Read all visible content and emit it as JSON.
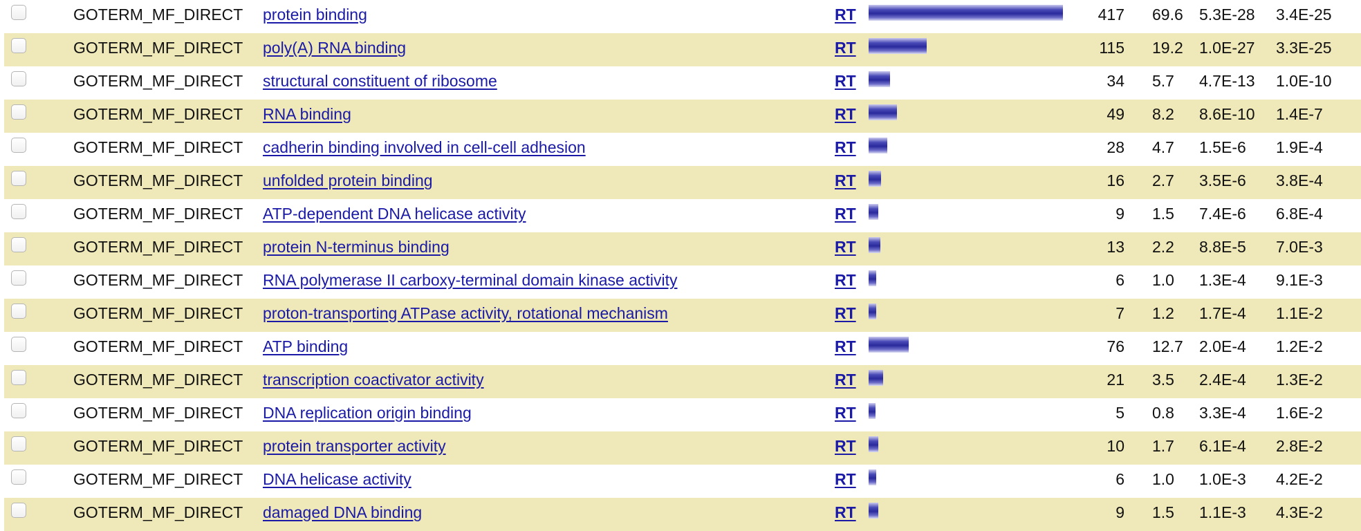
{
  "rows": [
    {
      "category": "GOTERM_MF_DIRECT",
      "term": "protein binding",
      "rt": "RT",
      "count": "417",
      "percent": "69.6",
      "pvalue": "5.3E-28",
      "benjamini": "3.4E-25",
      "bar_fraction": 1.0
    },
    {
      "category": "GOTERM_MF_DIRECT",
      "term": "poly(A) RNA binding",
      "rt": "RT",
      "count": "115",
      "percent": "19.2",
      "pvalue": "1.0E-27",
      "benjamini": "3.3E-25",
      "bar_fraction": 0.3
    },
    {
      "category": "GOTERM_MF_DIRECT",
      "term": "structural constituent of ribosome",
      "rt": "RT",
      "count": "34",
      "percent": "5.7",
      "pvalue": "4.7E-13",
      "benjamini": "1.0E-10",
      "bar_fraction": 0.11
    },
    {
      "category": "GOTERM_MF_DIRECT",
      "term": "RNA binding",
      "rt": "RT",
      "count": "49",
      "percent": "8.2",
      "pvalue": "8.6E-10",
      "benjamini": "1.4E-7",
      "bar_fraction": 0.145
    },
    {
      "category": "GOTERM_MF_DIRECT",
      "term": "cadherin binding involved in cell-cell adhesion",
      "rt": "RT",
      "count": "28",
      "percent": "4.7",
      "pvalue": "1.5E-6",
      "benjamini": "1.9E-4",
      "bar_fraction": 0.095
    },
    {
      "category": "GOTERM_MF_DIRECT",
      "term": "unfolded protein binding",
      "rt": "RT",
      "count": "16",
      "percent": "2.7",
      "pvalue": "3.5E-6",
      "benjamini": "3.8E-4",
      "bar_fraction": 0.065
    },
    {
      "category": "GOTERM_MF_DIRECT",
      "term": "ATP-dependent DNA helicase activity",
      "rt": "RT",
      "count": "9",
      "percent": "1.5",
      "pvalue": "7.4E-6",
      "benjamini": "6.8E-4",
      "bar_fraction": 0.05
    },
    {
      "category": "GOTERM_MF_DIRECT",
      "term": "protein N-terminus binding",
      "rt": "RT",
      "count": "13",
      "percent": "2.2",
      "pvalue": "8.8E-5",
      "benjamini": "7.0E-3",
      "bar_fraction": 0.06
    },
    {
      "category": "GOTERM_MF_DIRECT",
      "term": "RNA polymerase II carboxy-terminal domain kinase activity",
      "rt": "RT",
      "count": "6",
      "percent": "1.0",
      "pvalue": "1.3E-4",
      "benjamini": "9.1E-3",
      "bar_fraction": 0.04
    },
    {
      "category": "GOTERM_MF_DIRECT",
      "term": "proton-transporting ATPase activity, rotational mechanism",
      "rt": "RT",
      "count": "7",
      "percent": "1.2",
      "pvalue": "1.7E-4",
      "benjamini": "1.1E-2",
      "bar_fraction": 0.04
    },
    {
      "category": "GOTERM_MF_DIRECT",
      "term": "ATP binding",
      "rt": "RT",
      "count": "76",
      "percent": "12.7",
      "pvalue": "2.0E-4",
      "benjamini": "1.2E-2",
      "bar_fraction": 0.205
    },
    {
      "category": "GOTERM_MF_DIRECT",
      "term": "transcription coactivator activity",
      "rt": "RT",
      "count": "21",
      "percent": "3.5",
      "pvalue": "2.4E-4",
      "benjamini": "1.3E-2",
      "bar_fraction": 0.075
    },
    {
      "category": "GOTERM_MF_DIRECT",
      "term": "DNA replication origin binding",
      "rt": "RT",
      "count": "5",
      "percent": "0.8",
      "pvalue": "3.3E-4",
      "benjamini": "1.6E-2",
      "bar_fraction": 0.035
    },
    {
      "category": "GOTERM_MF_DIRECT",
      "term": "protein transporter activity",
      "rt": "RT",
      "count": "10",
      "percent": "1.7",
      "pvalue": "6.1E-4",
      "benjamini": "2.8E-2",
      "bar_fraction": 0.05
    },
    {
      "category": "GOTERM_MF_DIRECT",
      "term": "DNA helicase activity",
      "rt": "RT",
      "count": "6",
      "percent": "1.0",
      "pvalue": "1.0E-3",
      "benjamini": "4.2E-2",
      "bar_fraction": 0.04
    },
    {
      "category": "GOTERM_MF_DIRECT",
      "term": "damaged DNA binding",
      "rt": "RT",
      "count": "9",
      "percent": "1.5",
      "pvalue": "1.1E-3",
      "benjamini": "4.3E-2",
      "bar_fraction": 0.05
    }
  ],
  "colors": {
    "alt_row_bg": "#efe8b8",
    "link": "#1a1aa6",
    "bar": "#2a2a9c",
    "text": "#111111"
  }
}
